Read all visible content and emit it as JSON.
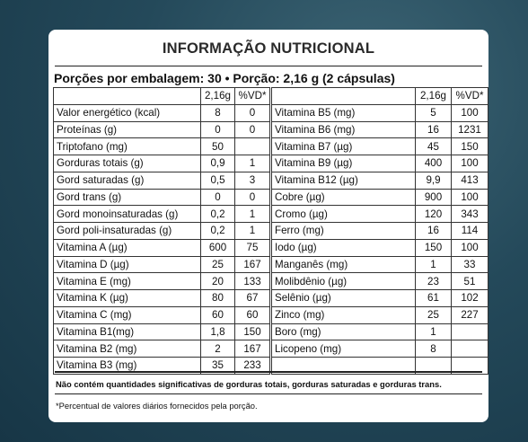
{
  "title": "INFORMAÇÃO NUTRICIONAL",
  "portions": "Porções por embalagem: 30 • Porção: 2,16 g (2 cápsulas)",
  "header": {
    "col_amount": "2,16g",
    "col_vd": "%VD*"
  },
  "left_rows": [
    {
      "name": "Valor energético (kcal)",
      "amount": "8",
      "vd": "0"
    },
    {
      "name": "Proteínas (g)",
      "amount": "0",
      "vd": "0"
    },
    {
      "name": "Triptofano (mg)",
      "amount": "50",
      "vd": ""
    },
    {
      "name": "Gorduras totais (g)",
      "amount": "0,9",
      "vd": "1"
    },
    {
      "name": "Gord saturadas (g)",
      "amount": "0,5",
      "vd": "3"
    },
    {
      "name": "Gord trans (g)",
      "amount": "0",
      "vd": "0"
    },
    {
      "name": "Gord monoinsaturadas (g)",
      "amount": "0,2",
      "vd": "1"
    },
    {
      "name": "Gord poli-insaturadas (g)",
      "amount": "0,2",
      "vd": "1"
    },
    {
      "name": "Vitamina A (µg)",
      "amount": "600",
      "vd": "75"
    },
    {
      "name": "Vitamina D (µg)",
      "amount": "25",
      "vd": "167"
    },
    {
      "name": "Vitamina E (mg)",
      "amount": "20",
      "vd": "133"
    },
    {
      "name": "Vitamina K (µg)",
      "amount": "80",
      "vd": "67"
    },
    {
      "name": "Vitamina C (mg)",
      "amount": "60",
      "vd": "60"
    },
    {
      "name": "Vitamina B1(mg)",
      "amount": "1,8",
      "vd": "150"
    },
    {
      "name": "Vitamina B2 (mg)",
      "amount": "2",
      "vd": "167"
    },
    {
      "name": "Vitamina B3 (mg)",
      "amount": "35",
      "vd": "233"
    }
  ],
  "right_rows": [
    {
      "name": "Vitamina B5 (mg)",
      "amount": "5",
      "vd": "100"
    },
    {
      "name": "Vitamina B6 (mg)",
      "amount": "16",
      "vd": "1231"
    },
    {
      "name": "Vitamina B7 (µg)",
      "amount": "45",
      "vd": "150"
    },
    {
      "name": "Vitamina B9 (µg)",
      "amount": "400",
      "vd": "100"
    },
    {
      "name": "Vitamina B12 (µg)",
      "amount": "9,9",
      "vd": "413"
    },
    {
      "name": "Cobre (µg)",
      "amount": "900",
      "vd": "100"
    },
    {
      "name": "Cromo (µg)",
      "amount": "120",
      "vd": "343"
    },
    {
      "name": "Ferro (mg)",
      "amount": "16",
      "vd": "114"
    },
    {
      "name": "Iodo (µg)",
      "amount": "150",
      "vd": "100"
    },
    {
      "name": "Manganês (mg)",
      "amount": "1",
      "vd": "33"
    },
    {
      "name": "Molibdênio (µg)",
      "amount": "23",
      "vd": "51"
    },
    {
      "name": "Selênio (µg)",
      "amount": "61",
      "vd": "102"
    },
    {
      "name": "Zinco (mg)",
      "amount": "25",
      "vd": "227"
    },
    {
      "name": "Boro (mg)",
      "amount": "1",
      "vd": ""
    },
    {
      "name": "Licopeno (mg)",
      "amount": "8",
      "vd": ""
    },
    {
      "name": "",
      "amount": "",
      "vd": ""
    }
  ],
  "note_bold": "Não contém quantidades significativas de gorduras totais, gorduras saturadas e gorduras trans.",
  "note": "*Percentual de valores diários fornecidos pela porção."
}
